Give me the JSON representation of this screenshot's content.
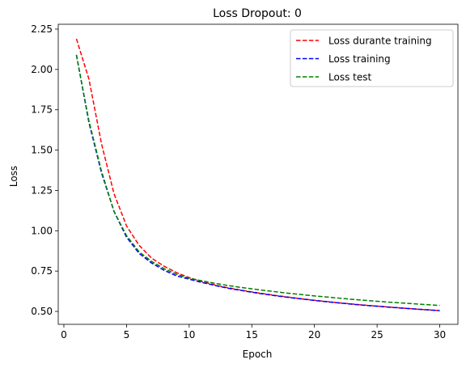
{
  "chart_data": {
    "type": "line",
    "title": "Loss  Dropout: 0",
    "xlabel": "Epoch",
    "ylabel": "Loss",
    "xlim": [
      -0.45,
      31.45
    ],
    "ylim": [
      0.42,
      2.28
    ],
    "xticks": [
      0,
      5,
      10,
      15,
      20,
      25,
      30
    ],
    "yticks": [
      0.5,
      0.75,
      1.0,
      1.25,
      1.5,
      1.75,
      2.0,
      2.25
    ],
    "ytick_labels": [
      "0.50",
      "0.75",
      "1.00",
      "1.25",
      "1.50",
      "1.75",
      "2.00",
      "2.25"
    ],
    "legend_position": "top-right",
    "grid": false,
    "x": [
      1,
      2,
      3,
      4,
      5,
      6,
      7,
      8,
      9,
      10,
      11,
      12,
      13,
      14,
      15,
      16,
      17,
      18,
      19,
      20,
      21,
      22,
      23,
      24,
      25,
      26,
      27,
      28,
      29,
      30
    ],
    "series": [
      {
        "name": "Loss durante training",
        "color": "#ff0000",
        "values": [
          2.19,
          1.94,
          1.54,
          1.23,
          1.03,
          0.91,
          0.83,
          0.78,
          0.74,
          0.71,
          0.685,
          0.665,
          0.648,
          0.634,
          0.621,
          0.609,
          0.598,
          0.588,
          0.578,
          0.569,
          0.561,
          0.553,
          0.546,
          0.539,
          0.533,
          0.527,
          0.521,
          0.515,
          0.51,
          0.505
        ]
      },
      {
        "name": "Loss training",
        "color": "#0000ff",
        "values": [
          2.09,
          1.67,
          1.36,
          1.12,
          0.96,
          0.86,
          0.8,
          0.755,
          0.72,
          0.7,
          0.68,
          0.662,
          0.645,
          0.632,
          0.619,
          0.607,
          0.596,
          0.586,
          0.577,
          0.568,
          0.56,
          0.552,
          0.545,
          0.538,
          0.532,
          0.526,
          0.52,
          0.515,
          0.51,
          0.505
        ]
      },
      {
        "name": "Loss test",
        "color": "#008000",
        "values": [
          2.09,
          1.68,
          1.37,
          1.12,
          0.97,
          0.87,
          0.81,
          0.765,
          0.73,
          0.705,
          0.69,
          0.675,
          0.662,
          0.65,
          0.64,
          0.63,
          0.621,
          0.612,
          0.604,
          0.596,
          0.589,
          0.582,
          0.575,
          0.569,
          0.563,
          0.557,
          0.552,
          0.547,
          0.542,
          0.537
        ]
      }
    ]
  }
}
